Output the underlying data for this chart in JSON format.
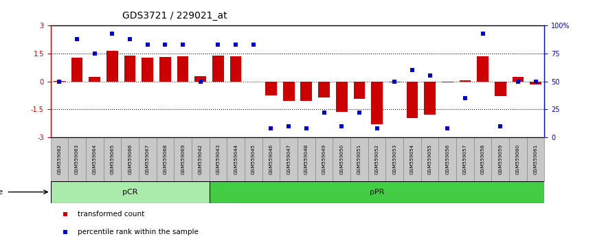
{
  "title": "GDS3721 / 229021_at",
  "samples": [
    "GSM559062",
    "GSM559063",
    "GSM559064",
    "GSM559065",
    "GSM559066",
    "GSM559067",
    "GSM559068",
    "GSM559069",
    "GSM559042",
    "GSM559043",
    "GSM559044",
    "GSM559045",
    "GSM559046",
    "GSM559047",
    "GSM559048",
    "GSM559049",
    "GSM559050",
    "GSM559051",
    "GSM559052",
    "GSM559053",
    "GSM559054",
    "GSM559055",
    "GSM559056",
    "GSM559057",
    "GSM559058",
    "GSM559059",
    "GSM559060",
    "GSM559061"
  ],
  "transformed_count": [
    0.02,
    1.28,
    0.25,
    1.65,
    1.4,
    1.27,
    1.32,
    1.35,
    0.28,
    1.4,
    1.33,
    0.0,
    -0.75,
    -1.05,
    -1.05,
    -0.85,
    -1.65,
    -0.95,
    -2.3,
    -0.07,
    -1.95,
    -1.8,
    -0.07,
    0.05,
    1.35,
    -0.8,
    0.25,
    -0.15
  ],
  "percentile_rank": [
    50,
    88,
    75,
    93,
    88,
    83,
    83,
    83,
    50,
    83,
    83,
    83,
    8,
    10,
    8,
    22,
    10,
    22,
    8,
    50,
    60,
    55,
    8,
    35,
    93,
    10,
    50,
    50
  ],
  "pcr_count": 9,
  "ppr_count": 19,
  "bar_color": "#cc0000",
  "dot_color": "#0000cc",
  "pcr_color": "#aaeaaa",
  "ppr_color": "#44cc44",
  "right_axis_color": "#0000cc",
  "left_axis_color": "#cc0000",
  "cell_color": "#c8c8c8",
  "cell_edge_color": "#888888"
}
